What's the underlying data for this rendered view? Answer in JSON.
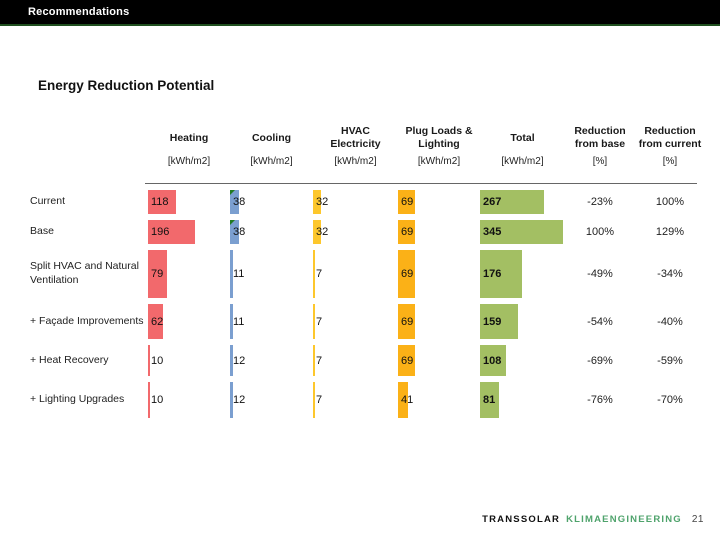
{
  "top_bar": {
    "title": "Recommendations"
  },
  "main": {
    "title": "Energy Reduction Potential"
  },
  "footer": {
    "brand": "TRANSSOLAR",
    "brand_suffix": "KLIMAENGINEERING",
    "page_number": "21"
  },
  "colors": {
    "top_bar_bg": "#000000",
    "top_bar_underline": "#1f4f1f",
    "heating_bar": "#f2696c",
    "cooling_bar": "#7b9fd0",
    "hvac_bar": "#fdc72c",
    "plug_bar": "#fbb117",
    "total_bar": "#a3bf63",
    "comment_marker": "#217a21",
    "header_rule": "#666666",
    "brand_green": "#4fa36c"
  },
  "chart_data": {
    "type": "table",
    "title": "Energy Reduction Potential",
    "legend": "none",
    "columns": [
      {
        "label": "",
        "unit": "",
        "kind": "label"
      },
      {
        "label": "Heating",
        "unit": "[kWh/m2]",
        "kind": "bar",
        "color_key": "heating_bar"
      },
      {
        "label": "Cooling",
        "unit": "[kWh/m2]",
        "kind": "bar",
        "color_key": "cooling_bar"
      },
      {
        "label": "HVAC Electricity",
        "unit": "[kWh/m2]",
        "kind": "bar",
        "color_key": "hvac_bar"
      },
      {
        "label": "Plug Loads & Lighting",
        "unit": "[kWh/m2]",
        "kind": "bar",
        "color_key": "plug_bar"
      },
      {
        "label": "Total",
        "unit": "[kWh/m2]",
        "kind": "bar",
        "color_key": "total_bar",
        "bold_values": true
      },
      {
        "label": "Reduction from base",
        "unit": "[%]",
        "kind": "text"
      },
      {
        "label": "Reduction from current",
        "unit": "[%]",
        "kind": "text"
      }
    ],
    "rows": [
      {
        "label": "Current",
        "values": [
          118,
          38,
          32,
          69,
          267,
          "-23%",
          "100%"
        ],
        "comment_marker_value_cols": [
          1
        ]
      },
      {
        "label": "Base",
        "values": [
          196,
          38,
          32,
          69,
          345,
          "100%",
          "129%"
        ],
        "comment_marker_value_cols": [
          1
        ]
      },
      {
        "label": "Split HVAC and Natural Ventilation",
        "values": [
          79,
          11,
          7,
          69,
          176,
          "-49%",
          "-34%"
        ],
        "comment_marker_value_cols": []
      },
      {
        "label": "+ Façade Improvements",
        "values": [
          62,
          11,
          7,
          69,
          159,
          "-54%",
          "-40%"
        ],
        "comment_marker_value_cols": []
      },
      {
        "label": "+ Heat Recovery",
        "values": [
          10,
          12,
          7,
          69,
          108,
          "-69%",
          "-59%"
        ],
        "comment_marker_value_cols": []
      },
      {
        "label": "+ Lighting Upgrades",
        "values": [
          10,
          12,
          7,
          41,
          81,
          "-76%",
          "-70%"
        ],
        "comment_marker_value_cols": []
      }
    ],
    "bar_value_unit": "kWh/m2",
    "bar_scale_note": "bar widths proportional to values, same scale for all bar columns"
  }
}
